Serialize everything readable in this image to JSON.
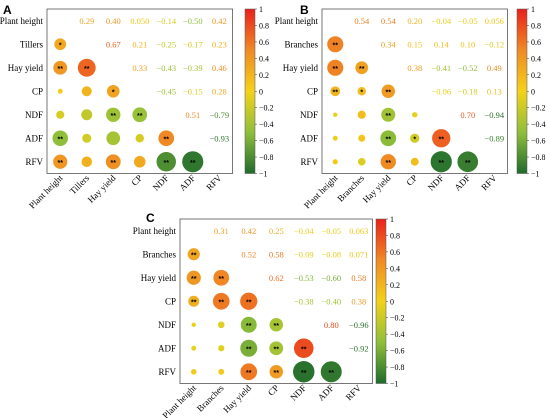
{
  "chart_data": [
    {
      "type": "heatmap",
      "panel_label": "A",
      "variables": [
        "Plant height",
        "Tillers",
        "Hay yield",
        "CP",
        "NDF",
        "ADF",
        "RFV"
      ],
      "upper_values": [
        [
          null,
          0.29,
          0.4,
          0.05,
          -0.14,
          -0.5,
          0.42
        ],
        [
          null,
          null,
          0.67,
          0.21,
          -0.25,
          -0.17,
          0.23
        ],
        [
          null,
          null,
          null,
          0.33,
          -0.43,
          -0.39,
          0.46
        ],
        [
          null,
          null,
          null,
          null,
          -0.45,
          -0.15,
          0.28
        ],
        [
          null,
          null,
          null,
          null,
          null,
          0.51,
          -0.79
        ],
        [
          null,
          null,
          null,
          null,
          null,
          null,
          -0.93
        ],
        [
          null,
          null,
          null,
          null,
          null,
          null,
          null
        ]
      ],
      "upper_labels": [
        [
          "",
          "0.29",
          "0.40",
          "0.050",
          "−0.14",
          "−0.50",
          "0.42"
        ],
        [
          "",
          "",
          "0.67",
          "0.21",
          "−0.25",
          "−0.17",
          "0.23"
        ],
        [
          "",
          "",
          "",
          "0.33",
          "−0.43",
          "−0.39",
          "0.46"
        ],
        [
          "",
          "",
          "",
          "",
          "−0.45",
          "−0.15",
          "0.28"
        ],
        [
          "",
          "",
          "",
          "",
          "",
          "0.51",
          "−0.79"
        ],
        [
          "",
          "",
          "",
          "",
          "",
          "",
          "−0.93"
        ],
        [
          "",
          "",
          "",
          "",
          "",
          "",
          ""
        ]
      ],
      "stars": [
        [
          "",
          "",
          "",
          "",
          "",
          "",
          ""
        ],
        [
          "*",
          "",
          "",
          "",
          "",
          "",
          ""
        ],
        [
          "**",
          "**",
          "",
          "",
          "",
          "",
          ""
        ],
        [
          "",
          "",
          "*",
          "",
          "",
          "",
          ""
        ],
        [
          "",
          "",
          "**",
          "**",
          "",
          "",
          ""
        ],
        [
          "**",
          "",
          "",
          "",
          "**",
          "",
          ""
        ],
        [
          "**",
          "",
          "**",
          "",
          "**",
          "**",
          ""
        ]
      ],
      "colorbar": {
        "range": [
          -1,
          1
        ],
        "ticks": [
          "1",
          "0.8",
          "0.6",
          "0.4",
          "0.2",
          "0",
          "−0.2",
          "−0.4",
          "−0.6",
          "−0.8",
          "−1"
        ]
      }
    },
    {
      "type": "heatmap",
      "panel_label": "B",
      "variables": [
        "Plant height",
        "Branches",
        "Hay yield",
        "CP",
        "NDF",
        "ADF",
        "RFV"
      ],
      "upper_values": [
        [
          null,
          0.54,
          0.54,
          0.2,
          -0.04,
          -0.05,
          0.056
        ],
        [
          null,
          null,
          0.34,
          0.15,
          0.14,
          0.1,
          -0.12
        ],
        [
          null,
          null,
          null,
          0.38,
          -0.41,
          -0.52,
          0.49
        ],
        [
          null,
          null,
          null,
          null,
          -0.06,
          -0.18,
          0.13
        ],
        [
          null,
          null,
          null,
          null,
          null,
          0.7,
          -0.94
        ],
        [
          null,
          null,
          null,
          null,
          null,
          null,
          -0.89
        ],
        [
          null,
          null,
          null,
          null,
          null,
          null,
          null
        ]
      ],
      "upper_labels": [
        [
          "",
          "0.54",
          "0.54",
          "0.20",
          "−0.04",
          "−0.05",
          "0.056"
        ],
        [
          "",
          "",
          "0.34",
          "0.15",
          "0.14",
          "0.10",
          "−0.12"
        ],
        [
          "",
          "",
          "",
          "0.38",
          "−0.41",
          "−0.52",
          "0.49"
        ],
        [
          "",
          "",
          "",
          "",
          "−0.06",
          "−0.18",
          "0.13"
        ],
        [
          "",
          "",
          "",
          "",
          "",
          "0.70",
          "−0.94"
        ],
        [
          "",
          "",
          "",
          "",
          "",
          "",
          "−0.89"
        ],
        [
          "",
          "",
          "",
          "",
          "",
          "",
          ""
        ]
      ],
      "stars": [
        [
          "",
          "",
          "",
          "",
          "",
          "",
          ""
        ],
        [
          "**",
          "",
          "",
          "",
          "",
          "",
          ""
        ],
        [
          "**",
          "**",
          "",
          "",
          "",
          "",
          ""
        ],
        [
          "**",
          "*",
          "**",
          "",
          "",
          "",
          ""
        ],
        [
          "",
          "",
          "**",
          "",
          "",
          "",
          ""
        ],
        [
          "",
          "",
          "**",
          "*",
          "**",
          "",
          ""
        ],
        [
          "",
          "",
          "**",
          "",
          "**",
          "**",
          ""
        ]
      ],
      "colorbar": {
        "range": [
          -1,
          1
        ],
        "ticks": [
          "1",
          "0.8",
          "0.6",
          "0.4",
          "0.2",
          "0",
          "−0.2",
          "−0.4",
          "−0.6",
          "−0.8",
          "−1"
        ]
      }
    },
    {
      "type": "heatmap",
      "panel_label": "C",
      "variables": [
        "Plant height",
        "Branches",
        "Hay yield",
        "CP",
        "NDF",
        "ADF",
        "RFV"
      ],
      "upper_values": [
        [
          null,
          0.31,
          0.42,
          0.25,
          -0.04,
          -0.05,
          0.063
        ],
        [
          null,
          null,
          0.52,
          0.58,
          -0.09,
          -0.08,
          0.071
        ],
        [
          null,
          null,
          null,
          0.62,
          -0.53,
          -0.6,
          0.58
        ],
        [
          null,
          null,
          null,
          null,
          -0.38,
          -0.4,
          0.38
        ],
        [
          null,
          null,
          null,
          null,
          null,
          0.8,
          -0.96
        ],
        [
          null,
          null,
          null,
          null,
          null,
          null,
          -0.92
        ],
        [
          null,
          null,
          null,
          null,
          null,
          null,
          null
        ]
      ],
      "upper_labels": [
        [
          "",
          "0.31",
          "0.42",
          "0.25",
          "−0.04",
          "−0.05",
          "0.063"
        ],
        [
          "",
          "",
          "0.52",
          "0.58",
          "−0.09",
          "−0.08",
          "0.071"
        ],
        [
          "",
          "",
          "",
          "0.62",
          "−0.53",
          "−0.60",
          "0.58"
        ],
        [
          "",
          "",
          "",
          "",
          "−0.38",
          "−0.40",
          "0.38"
        ],
        [
          "",
          "",
          "",
          "",
          "",
          "0.80",
          "−0.96"
        ],
        [
          "",
          "",
          "",
          "",
          "",
          "",
          "−0.92"
        ],
        [
          "",
          "",
          "",
          "",
          "",
          "",
          ""
        ]
      ],
      "stars": [
        [
          "",
          "",
          "",
          "",
          "",
          "",
          ""
        ],
        [
          "**",
          "",
          "",
          "",
          "",
          "",
          ""
        ],
        [
          "**",
          "**",
          "",
          "",
          "",
          "",
          ""
        ],
        [
          "**",
          "**",
          "**",
          "",
          "",
          "",
          ""
        ],
        [
          "",
          "",
          "**",
          "**",
          "",
          "",
          ""
        ],
        [
          "",
          "",
          "**",
          "**",
          "**",
          "",
          ""
        ],
        [
          "",
          "",
          "**",
          "**",
          "**",
          "**",
          ""
        ]
      ],
      "colorbar": {
        "range": [
          -1,
          1
        ],
        "ticks": [
          "1",
          "0.8",
          "0.6",
          "0.4",
          "0.2",
          "0",
          "−0.2",
          "−0.4",
          "−0.6",
          "−0.8",
          "−1"
        ]
      }
    }
  ],
  "colors": {
    "positive_high": "#e8211c",
    "positive_mid": "#f08a24",
    "zero": "#f2d21a",
    "negative_mid": "#8fbf3a",
    "negative_high": "#1f6b2c"
  }
}
